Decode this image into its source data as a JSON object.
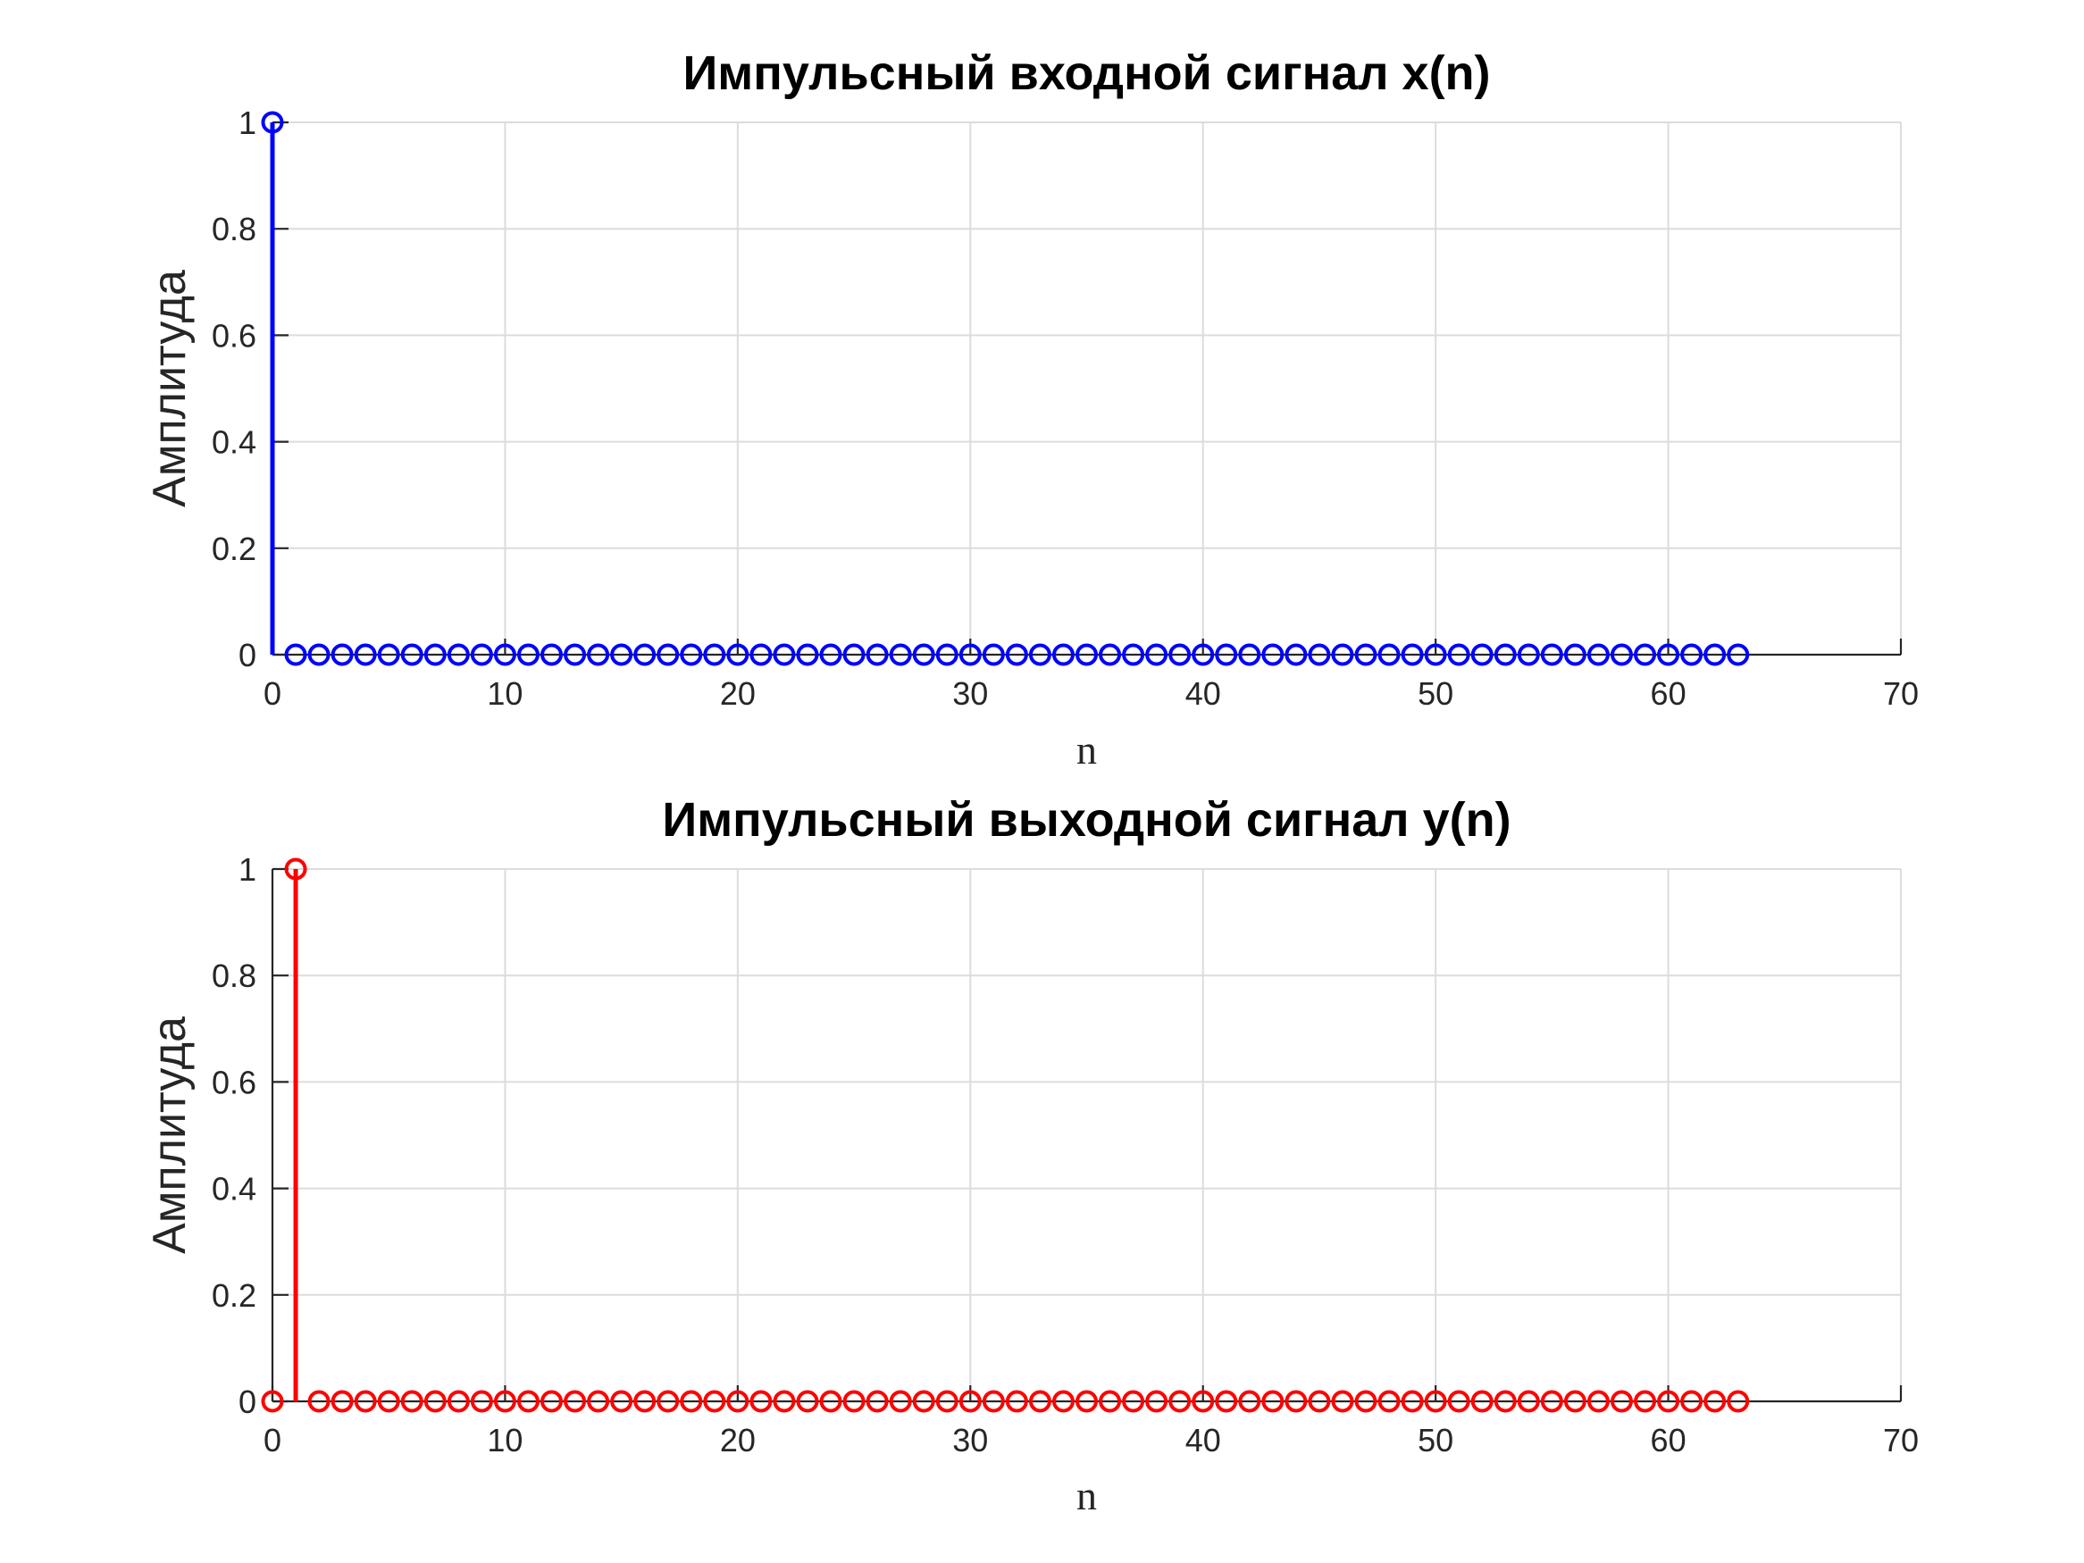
{
  "chart_data": [
    {
      "type": "stem",
      "title": "Импульсный входной сигнал x(n)",
      "xlabel": "n",
      "ylabel": "Амплитуда",
      "xlim": [
        0,
        70
      ],
      "ylim": [
        0,
        1
      ],
      "xticks": [
        0,
        10,
        20,
        30,
        40,
        50,
        60,
        70
      ],
      "yticks": [
        0,
        0.2,
        0.4,
        0.6,
        0.8,
        1
      ],
      "ytick_labels": [
        "0",
        "0.2",
        "0.4",
        "0.6",
        "0.8",
        "1"
      ],
      "grid": true,
      "color": "#0000ff",
      "marker": "circle",
      "x_start": 0,
      "values": [
        1,
        0,
        0,
        0,
        0,
        0,
        0,
        0,
        0,
        0,
        0,
        0,
        0,
        0,
        0,
        0,
        0,
        0,
        0,
        0,
        0,
        0,
        0,
        0,
        0,
        0,
        0,
        0,
        0,
        0,
        0,
        0,
        0,
        0,
        0,
        0,
        0,
        0,
        0,
        0,
        0,
        0,
        0,
        0,
        0,
        0,
        0,
        0,
        0,
        0,
        0,
        0,
        0,
        0,
        0,
        0,
        0,
        0,
        0,
        0,
        0,
        0,
        0,
        0
      ]
    },
    {
      "type": "stem",
      "title": "Импульсный выходной сигнал y(n)",
      "xlabel": "n",
      "ylabel": "Амплитуда",
      "xlim": [
        0,
        70
      ],
      "ylim": [
        0,
        1
      ],
      "xticks": [
        0,
        10,
        20,
        30,
        40,
        50,
        60,
        70
      ],
      "yticks": [
        0,
        0.2,
        0.4,
        0.6,
        0.8,
        1
      ],
      "ytick_labels": [
        "0",
        "0.2",
        "0.4",
        "0.6",
        "0.8",
        "1"
      ],
      "grid": true,
      "color": "#ff0000",
      "marker": "circle",
      "x_start": 0,
      "values": [
        0,
        1,
        0,
        0,
        0,
        0,
        0,
        0,
        0,
        0,
        0,
        0,
        0,
        0,
        0,
        0,
        0,
        0,
        0,
        0,
        0,
        0,
        0,
        0,
        0,
        0,
        0,
        0,
        0,
        0,
        0,
        0,
        0,
        0,
        0,
        0,
        0,
        0,
        0,
        0,
        0,
        0,
        0,
        0,
        0,
        0,
        0,
        0,
        0,
        0,
        0,
        0,
        0,
        0,
        0,
        0,
        0,
        0,
        0,
        0,
        0,
        0,
        0,
        0
      ]
    }
  ]
}
